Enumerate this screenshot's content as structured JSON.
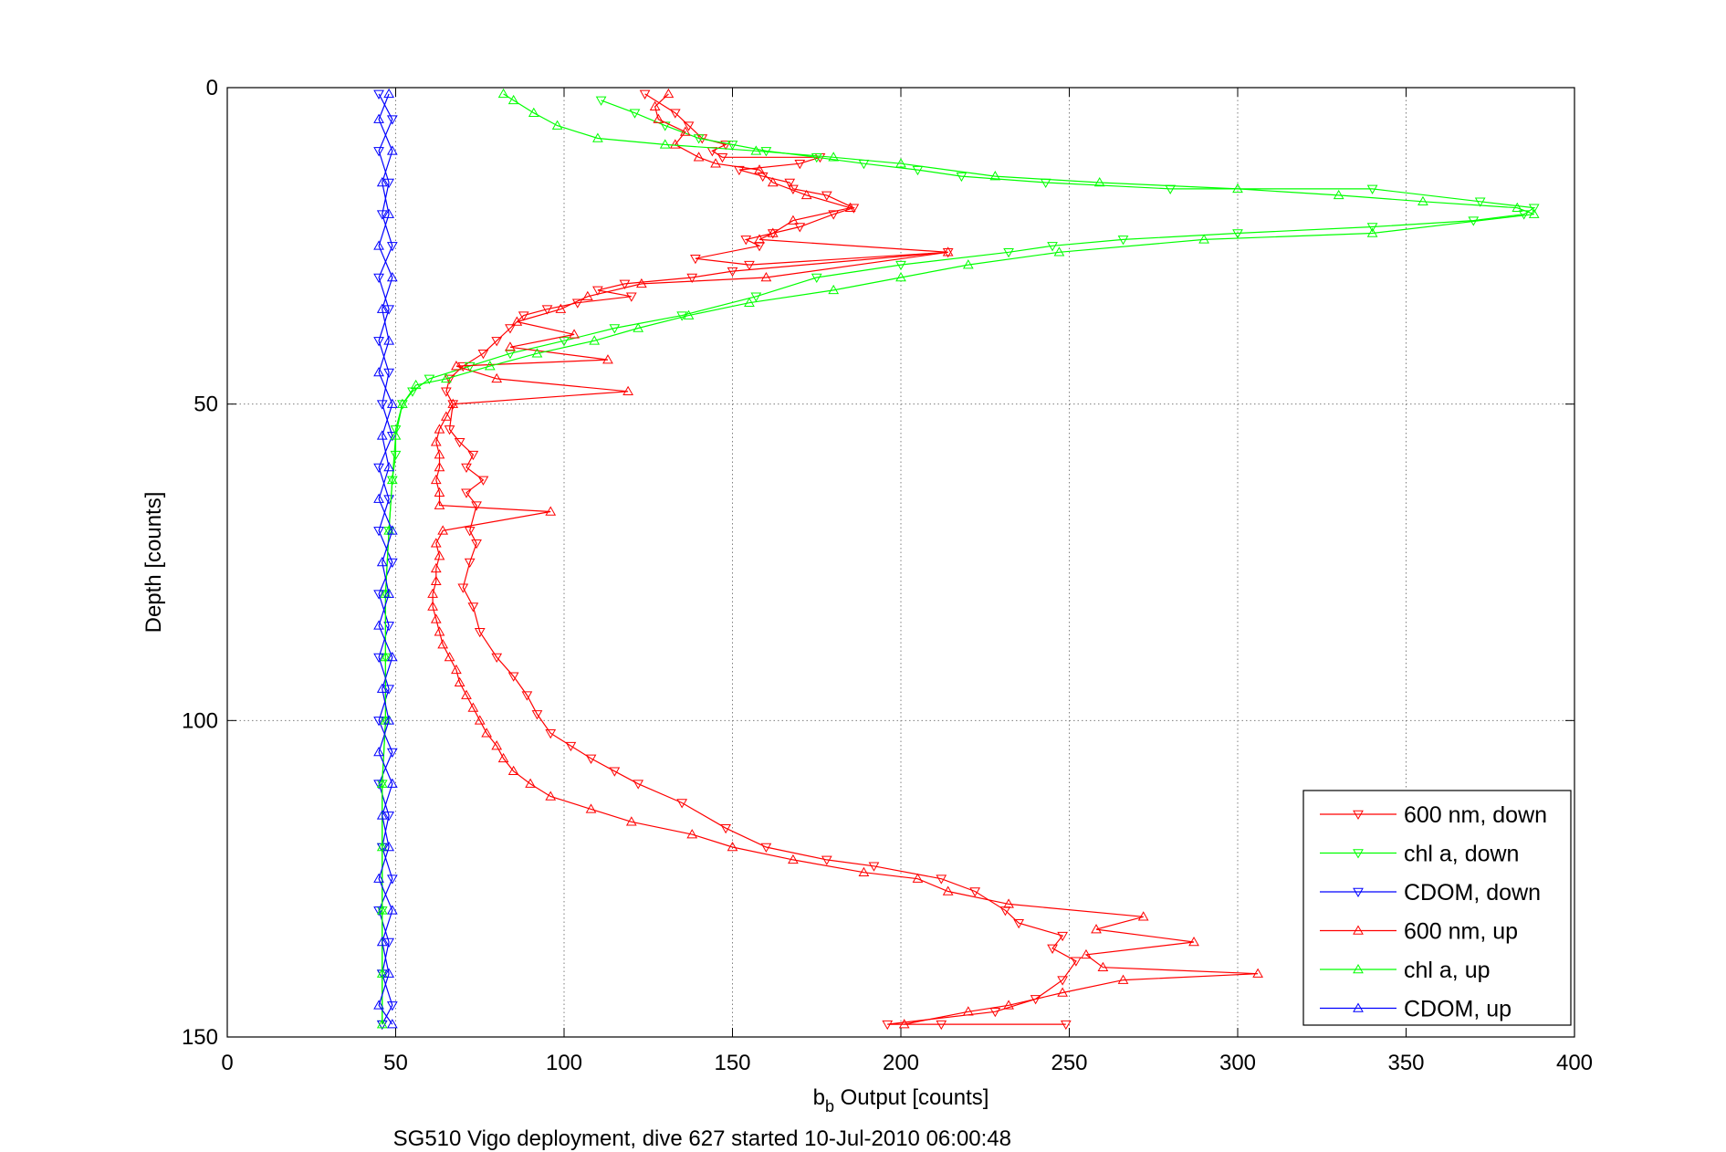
{
  "chart_data": {
    "type": "line",
    "xlabel_main": "b",
    "xlabel_sub": "b",
    "xlabel_rest": " Output [counts]",
    "ylabel": "Depth [counts]",
    "caption": "SG510 Vigo deployment, dive 627 started 10-Jul-2010 06:00:48",
    "xlim": [
      0,
      400
    ],
    "ylim": [
      0,
      150
    ],
    "y_reversed": true,
    "grid": true,
    "legend_position": "bottom-right",
    "xticks": [
      0,
      50,
      100,
      150,
      200,
      250,
      300,
      350,
      400
    ],
    "yticks": [
      0,
      50,
      100,
      150
    ],
    "series": [
      {
        "name": "600 nm, down",
        "color": "#ff0000",
        "marker": "triangle-down",
        "points": [
          [
            124,
            1
          ],
          [
            133,
            4
          ],
          [
            137,
            6
          ],
          [
            141,
            8
          ],
          [
            148,
            9
          ],
          [
            144,
            10
          ],
          [
            147,
            11
          ],
          [
            176,
            11
          ],
          [
            170,
            12
          ],
          [
            152,
            13
          ],
          [
            159,
            14
          ],
          [
            167,
            15
          ],
          [
            168,
            16
          ],
          [
            178,
            17
          ],
          [
            186,
            19
          ],
          [
            180,
            20
          ],
          [
            170,
            22
          ],
          [
            162,
            23
          ],
          [
            154,
            24
          ],
          [
            158,
            25
          ],
          [
            139,
            27
          ],
          [
            155,
            28
          ],
          [
            214,
            26
          ],
          [
            150,
            29
          ],
          [
            138,
            30
          ],
          [
            118,
            31
          ],
          [
            110,
            32
          ],
          [
            120,
            33
          ],
          [
            104,
            34
          ],
          [
            95,
            35
          ],
          [
            88,
            36
          ],
          [
            84,
            38
          ],
          [
            80,
            40
          ],
          [
            76,
            42
          ],
          [
            70,
            44
          ],
          [
            66,
            46
          ],
          [
            65,
            48
          ],
          [
            67,
            50
          ],
          [
            66,
            54
          ],
          [
            69,
            56
          ],
          [
            73,
            58
          ],
          [
            71,
            60
          ],
          [
            76,
            62
          ],
          [
            71,
            64
          ],
          [
            74,
            66
          ],
          [
            72,
            70
          ],
          [
            74,
            72
          ],
          [
            72,
            75
          ],
          [
            70,
            79
          ],
          [
            73,
            82
          ],
          [
            75,
            86
          ],
          [
            80,
            90
          ],
          [
            85,
            93
          ],
          [
            89,
            96
          ],
          [
            92,
            99
          ],
          [
            96,
            102
          ],
          [
            102,
            104
          ],
          [
            108,
            106
          ],
          [
            115,
            108
          ],
          [
            122,
            110
          ],
          [
            135,
            113
          ],
          [
            148,
            117
          ],
          [
            160,
            120
          ],
          [
            178,
            122
          ],
          [
            192,
            123
          ],
          [
            212,
            125
          ],
          [
            222,
            127
          ],
          [
            231,
            130
          ],
          [
            235,
            132
          ],
          [
            248,
            134
          ],
          [
            245,
            136
          ],
          [
            252,
            138
          ],
          [
            248,
            141
          ],
          [
            240,
            144
          ],
          [
            228,
            146
          ],
          [
            196,
            148
          ],
          [
            212,
            148
          ],
          [
            249,
            148
          ]
        ]
      },
      {
        "name": "chl a, down",
        "color": "#00ff00",
        "marker": "triangle-down",
        "points": [
          [
            111,
            2
          ],
          [
            121,
            4
          ],
          [
            130,
            6
          ],
          [
            140,
            8
          ],
          [
            150,
            9
          ],
          [
            160,
            10
          ],
          [
            175,
            11
          ],
          [
            189,
            12
          ],
          [
            205,
            13
          ],
          [
            218,
            14
          ],
          [
            243,
            15
          ],
          [
            280,
            16
          ],
          [
            340,
            16
          ],
          [
            372,
            18
          ],
          [
            388,
            19
          ],
          [
            385,
            20
          ],
          [
            370,
            21
          ],
          [
            340,
            22
          ],
          [
            300,
            23
          ],
          [
            266,
            24
          ],
          [
            245,
            25
          ],
          [
            232,
            26
          ],
          [
            200,
            28
          ],
          [
            175,
            30
          ],
          [
            157,
            33
          ],
          [
            135,
            36
          ],
          [
            115,
            38
          ],
          [
            100,
            40
          ],
          [
            84,
            42
          ],
          [
            72,
            44
          ],
          [
            60,
            46
          ],
          [
            55,
            48
          ],
          [
            52,
            50
          ],
          [
            50,
            54
          ],
          [
            50,
            58
          ],
          [
            49,
            62
          ],
          [
            48,
            70
          ],
          [
            47,
            80
          ],
          [
            47,
            90
          ],
          [
            47,
            100
          ],
          [
            46,
            110
          ],
          [
            46,
            120
          ],
          [
            46,
            130
          ],
          [
            46,
            140
          ],
          [
            46,
            148
          ]
        ]
      },
      {
        "name": "CDOM, down",
        "color": "#0000ff",
        "marker": "triangle-down",
        "points": [
          [
            45,
            1
          ],
          [
            49,
            5
          ],
          [
            45,
            10
          ],
          [
            48,
            15
          ],
          [
            46,
            20
          ],
          [
            49,
            25
          ],
          [
            45,
            30
          ],
          [
            48,
            35
          ],
          [
            45,
            40
          ],
          [
            48,
            45
          ],
          [
            46,
            50
          ],
          [
            49,
            55
          ],
          [
            45,
            60
          ],
          [
            48,
            65
          ],
          [
            45,
            70
          ],
          [
            49,
            75
          ],
          [
            45,
            80
          ],
          [
            48,
            85
          ],
          [
            45,
            90
          ],
          [
            48,
            95
          ],
          [
            45,
            100
          ],
          [
            49,
            105
          ],
          [
            45,
            110
          ],
          [
            48,
            115
          ],
          [
            46,
            120
          ],
          [
            49,
            125
          ],
          [
            45,
            130
          ],
          [
            48,
            135
          ],
          [
            46,
            140
          ],
          [
            49,
            145
          ],
          [
            46,
            148
          ]
        ]
      },
      {
        "name": "600 nm, up",
        "color": "#ff0000",
        "marker": "triangle-up",
        "points": [
          [
            201,
            148
          ],
          [
            220,
            146
          ],
          [
            232,
            145
          ],
          [
            248,
            143
          ],
          [
            266,
            141
          ],
          [
            306,
            140
          ],
          [
            260,
            139
          ],
          [
            255,
            137
          ],
          [
            287,
            135
          ],
          [
            258,
            133
          ],
          [
            272,
            131
          ],
          [
            232,
            129
          ],
          [
            214,
            127
          ],
          [
            205,
            125
          ],
          [
            189,
            124
          ],
          [
            168,
            122
          ],
          [
            150,
            120
          ],
          [
            138,
            118
          ],
          [
            120,
            116
          ],
          [
            108,
            114
          ],
          [
            96,
            112
          ],
          [
            90,
            110
          ],
          [
            85,
            108
          ],
          [
            82,
            106
          ],
          [
            80,
            104
          ],
          [
            77,
            102
          ],
          [
            75,
            100
          ],
          [
            73,
            98
          ],
          [
            71,
            96
          ],
          [
            69,
            94
          ],
          [
            68,
            92
          ],
          [
            66,
            90
          ],
          [
            64,
            88
          ],
          [
            63,
            86
          ],
          [
            62,
            84
          ],
          [
            61,
            82
          ],
          [
            61,
            80
          ],
          [
            62,
            78
          ],
          [
            62,
            76
          ],
          [
            63,
            74
          ],
          [
            62,
            72
          ],
          [
            64,
            70
          ],
          [
            96,
            67
          ],
          [
            63,
            66
          ],
          [
            63,
            64
          ],
          [
            62,
            62
          ],
          [
            63,
            60
          ],
          [
            63,
            58
          ],
          [
            62,
            56
          ],
          [
            63,
            54
          ],
          [
            65,
            52
          ],
          [
            67,
            50
          ],
          [
            119,
            48
          ],
          [
            80,
            46
          ],
          [
            68,
            44
          ],
          [
            113,
            43
          ],
          [
            84,
            41
          ],
          [
            103,
            39
          ],
          [
            86,
            37
          ],
          [
            99,
            35
          ],
          [
            107,
            33
          ],
          [
            123,
            31
          ],
          [
            160,
            30
          ],
          [
            214,
            26
          ],
          [
            158,
            24
          ],
          [
            162,
            23
          ],
          [
            168,
            21
          ],
          [
            185,
            19
          ],
          [
            172,
            17
          ],
          [
            162,
            15
          ],
          [
            158,
            13
          ],
          [
            145,
            12
          ],
          [
            140,
            11
          ],
          [
            133,
            9
          ],
          [
            136,
            7
          ],
          [
            128,
            5
          ],
          [
            127,
            3
          ],
          [
            131,
            1
          ]
        ]
      },
      {
        "name": "chl a, up",
        "color": "#00ff00",
        "marker": "triangle-up",
        "points": [
          [
            46,
            148
          ],
          [
            46,
            140
          ],
          [
            46,
            130
          ],
          [
            46,
            120
          ],
          [
            46,
            110
          ],
          [
            47,
            100
          ],
          [
            47,
            90
          ],
          [
            47,
            80
          ],
          [
            48,
            70
          ],
          [
            49,
            62
          ],
          [
            50,
            55
          ],
          [
            52,
            50
          ],
          [
            56,
            47
          ],
          [
            65,
            46
          ],
          [
            78,
            44
          ],
          [
            92,
            42
          ],
          [
            109,
            40
          ],
          [
            122,
            38
          ],
          [
            137,
            36
          ],
          [
            155,
            34
          ],
          [
            180,
            32
          ],
          [
            200,
            30
          ],
          [
            220,
            28
          ],
          [
            247,
            26
          ],
          [
            290,
            24
          ],
          [
            340,
            23
          ],
          [
            388,
            20
          ],
          [
            383,
            19
          ],
          [
            355,
            18
          ],
          [
            330,
            17
          ],
          [
            300,
            16
          ],
          [
            259,
            15
          ],
          [
            228,
            14
          ],
          [
            200,
            12
          ],
          [
            180,
            11
          ],
          [
            157,
            10
          ],
          [
            130,
            9
          ],
          [
            110,
            8
          ],
          [
            98,
            6
          ],
          [
            91,
            4
          ],
          [
            85,
            2
          ],
          [
            82,
            1
          ]
        ]
      },
      {
        "name": "CDOM, up",
        "color": "#0000ff",
        "marker": "triangle-up",
        "points": [
          [
            49,
            148
          ],
          [
            45,
            145
          ],
          [
            48,
            140
          ],
          [
            46,
            135
          ],
          [
            49,
            130
          ],
          [
            45,
            125
          ],
          [
            48,
            120
          ],
          [
            46,
            115
          ],
          [
            49,
            110
          ],
          [
            45,
            105
          ],
          [
            48,
            100
          ],
          [
            46,
            95
          ],
          [
            49,
            90
          ],
          [
            45,
            85
          ],
          [
            48,
            80
          ],
          [
            46,
            75
          ],
          [
            49,
            70
          ],
          [
            45,
            65
          ],
          [
            48,
            60
          ],
          [
            46,
            55
          ],
          [
            49,
            50
          ],
          [
            45,
            45
          ],
          [
            48,
            40
          ],
          [
            46,
            35
          ],
          [
            49,
            30
          ],
          [
            45,
            25
          ],
          [
            48,
            20
          ],
          [
            46,
            15
          ],
          [
            49,
            10
          ],
          [
            45,
            5
          ],
          [
            48,
            1
          ]
        ]
      }
    ]
  }
}
